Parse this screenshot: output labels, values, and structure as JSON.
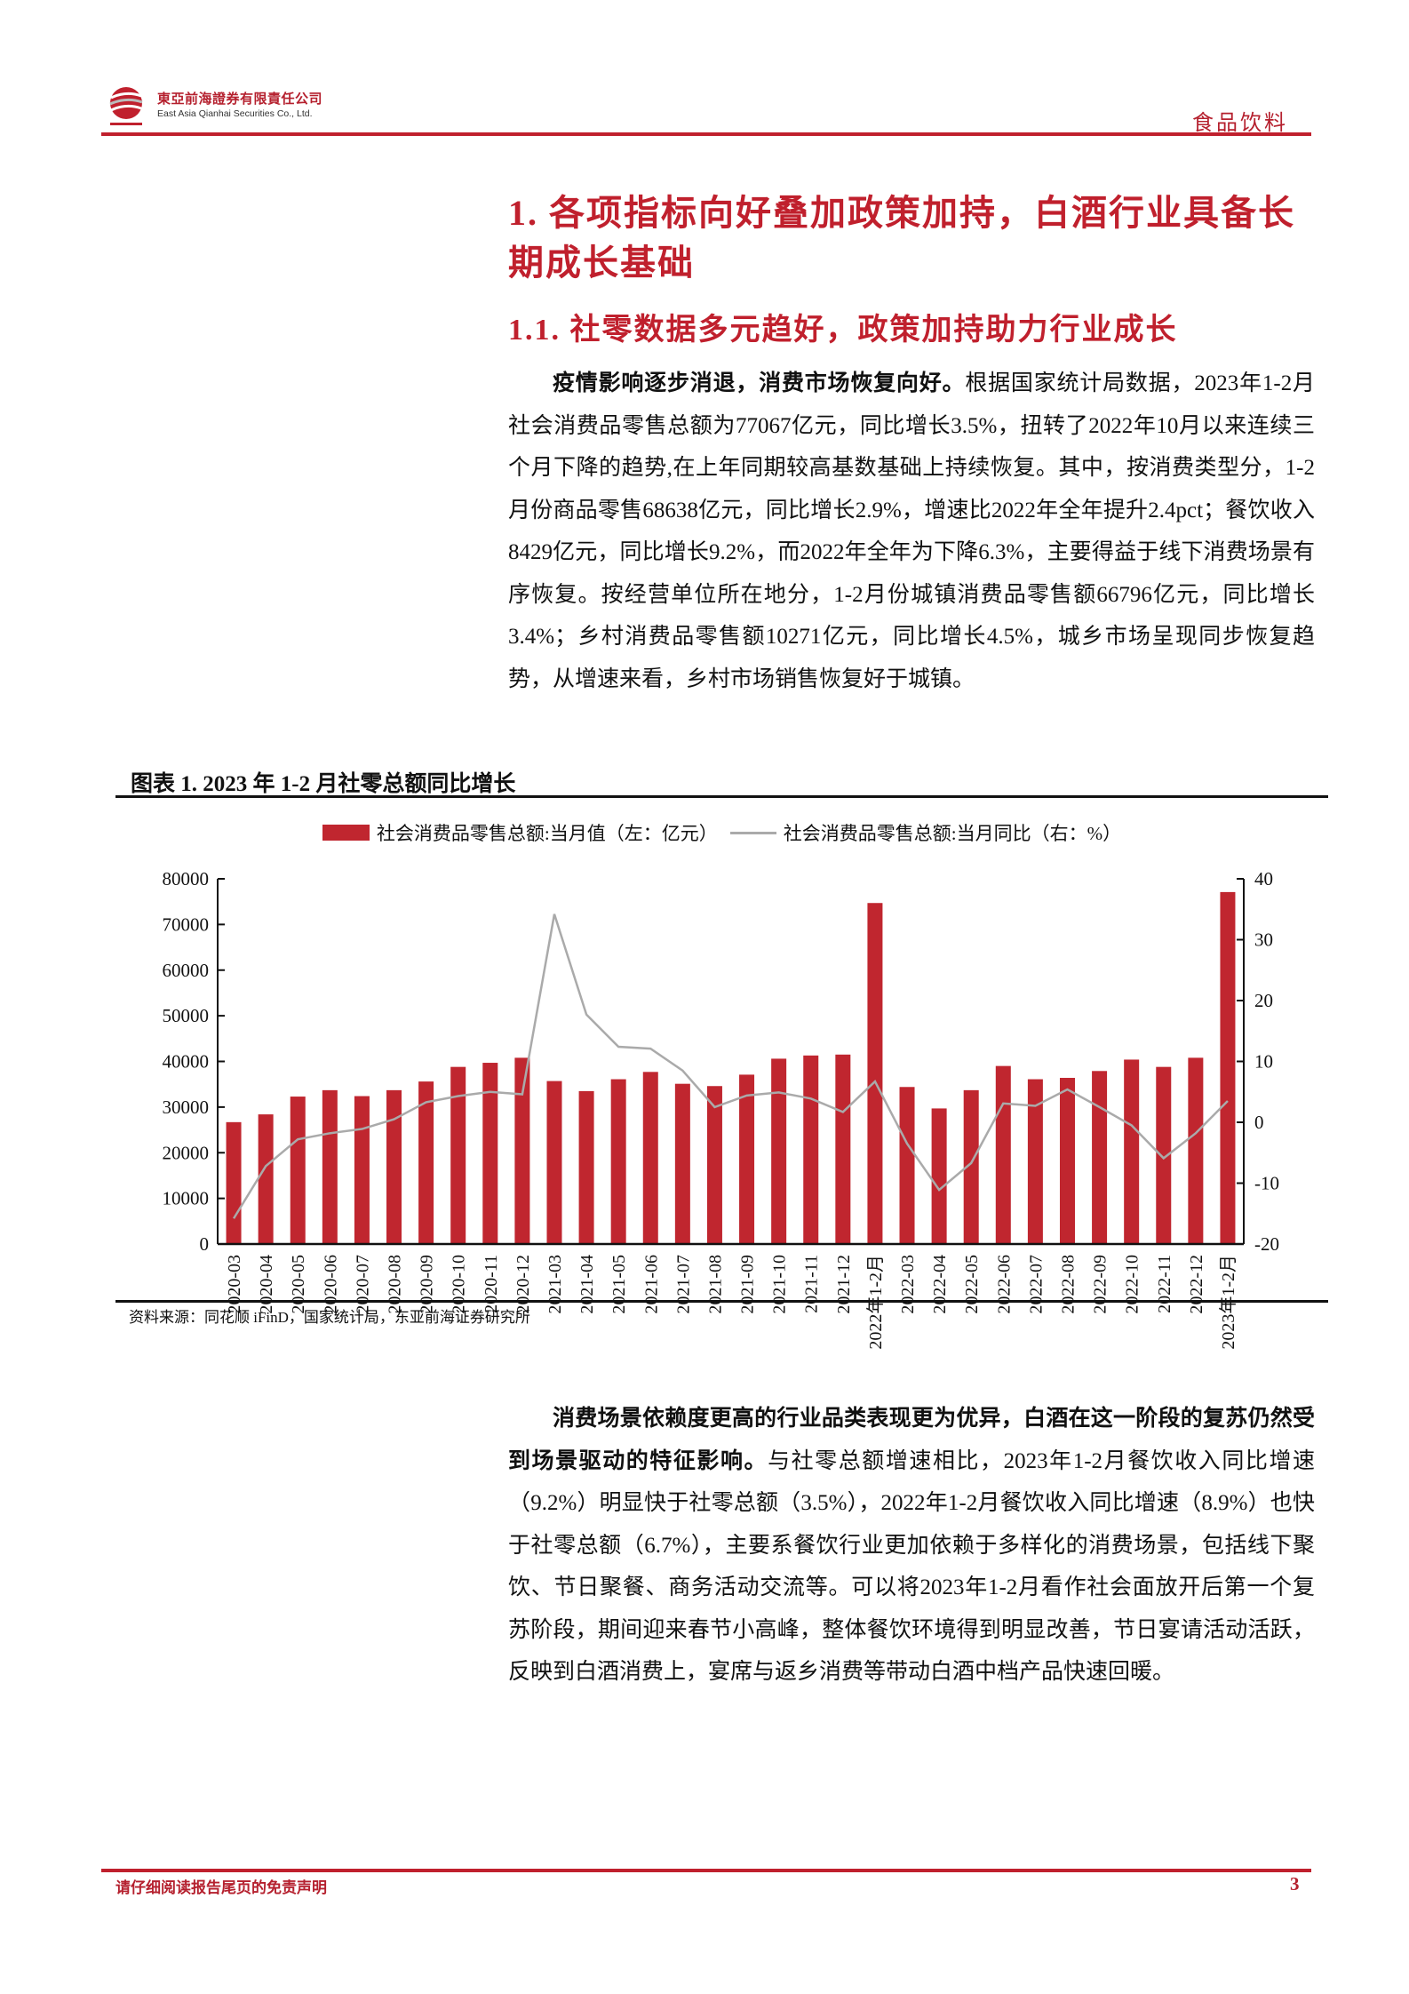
{
  "header": {
    "company_cn": "東亞前海證券有限責任公司",
    "company_en": "East Asia Qianhai Securities Co., Ltd.",
    "sector": "食品饮料",
    "brand_color": "#c0202d"
  },
  "section": {
    "h1": "1. 各项指标向好叠加政策加持，白酒行业具备长期成长基础",
    "h2": "1.1. 社零数据多元趋好，政策加持助力行业成长"
  },
  "para1": {
    "lead": "疫情影响逐步消退，消费市场恢复向好。",
    "body": "根据国家统计局数据，2023年1-2月社会消费品零售总额为77067亿元，同比增长3.5%，扭转了2022年10月以来连续三个月下降的趋势,在上年同期较高基数基础上持续恢复。其中，按消费类型分，1-2月份商品零售68638亿元，同比增长2.9%，增速比2022年全年提升2.4pct；餐饮收入8429亿元，同比增长9.2%，而2022年全年为下降6.3%，主要得益于线下消费场景有序恢复。按经营单位所在地分，1-2月份城镇消费品零售额66796亿元，同比增长3.4%；乡村消费品零售额10271亿元，同比增长4.5%，城乡市场呈现同步恢复趋势，从增速来看，乡村市场销售恢复好于城镇。"
  },
  "figure": {
    "title": "图表 1.  2023 年 1-2 月社零总额同比增长",
    "source": "资料来源：同花顺 iFinD，国家统计局，东亚前海证券研究所"
  },
  "chart_data": {
    "type": "bar+line",
    "categories": [
      "2020-03",
      "2020-04",
      "2020-05",
      "2020-06",
      "2020-07",
      "2020-08",
      "2020-09",
      "2020-10",
      "2020-11",
      "2020-12",
      "2021-03",
      "2021-04",
      "2021-05",
      "2021-06",
      "2021-07",
      "2021-08",
      "2021-09",
      "2021-10",
      "2021-11",
      "2021-12",
      "2022年1-2月",
      "2022-03",
      "2022-04",
      "2022-05",
      "2022-06",
      "2022-07",
      "2022-08",
      "2022-09",
      "2022-10",
      "2022-11",
      "2022-12",
      "2023年1-2月"
    ],
    "series": [
      {
        "name": "社会消费品零售总额:当月值（左：亿元）",
        "type": "bar",
        "axis": "left",
        "color": "#c0262f",
        "values": [
          26700,
          28400,
          32300,
          33700,
          32400,
          33700,
          35600,
          38800,
          39700,
          40800,
          35700,
          33500,
          36100,
          37700,
          35100,
          34600,
          37100,
          40600,
          41300,
          41500,
          74700,
          34400,
          29700,
          33700,
          39000,
          36100,
          36400,
          37900,
          40400,
          38800,
          40800,
          77100
        ]
      },
      {
        "name": "社会消费品零售总额:当月同比（右：%）",
        "type": "line",
        "axis": "right",
        "color": "#aaaaaa",
        "values": [
          -15.8,
          -7.2,
          -2.8,
          -1.8,
          -1.1,
          0.5,
          3.3,
          4.3,
          5.0,
          4.6,
          34.2,
          17.7,
          12.4,
          12.1,
          8.5,
          2.5,
          4.4,
          4.9,
          3.9,
          1.7,
          6.7,
          -3.5,
          -11.1,
          -6.7,
          3.1,
          2.7,
          5.4,
          2.5,
          -0.5,
          -5.9,
          -1.8,
          3.5
        ]
      }
    ],
    "y_left": {
      "range": [
        0,
        80000
      ],
      "ticks": [
        "0",
        "10000",
        "20000",
        "30000",
        "40000",
        "50000",
        "60000",
        "70000",
        "80000"
      ]
    },
    "y_right": {
      "range": [
        -20,
        40
      ],
      "ticks": [
        "-20",
        "-10",
        "0",
        "10",
        "20",
        "30",
        "40"
      ]
    },
    "grid": false,
    "legend": "top"
  },
  "para2": {
    "lead": "消费场景依赖度更高的行业品类表现更为优异，白酒在这一阶段的复苏仍然受到场景驱动的特征影响。",
    "body": "与社零总额增速相比，2023年1-2月餐饮收入同比增速（9.2%）明显快于社零总额（3.5%），2022年1-2月餐饮收入同比增速（8.9%）也快于社零总额（6.7%），主要系餐饮行业更加依赖于多样化的消费场景，包括线下聚饮、节日聚餐、商务活动交流等。可以将2023年1-2月看作社会面放开后第一个复苏阶段，期间迎来春节小高峰，整体餐饮环境得到明显改善，节日宴请活动活跃，反映到白酒消费上，宴席与返乡消费等带动白酒中档产品快速回暖。"
  },
  "footer": {
    "disclaimer": "请仔细阅读报告尾页的免责声明",
    "page_number": "3"
  }
}
